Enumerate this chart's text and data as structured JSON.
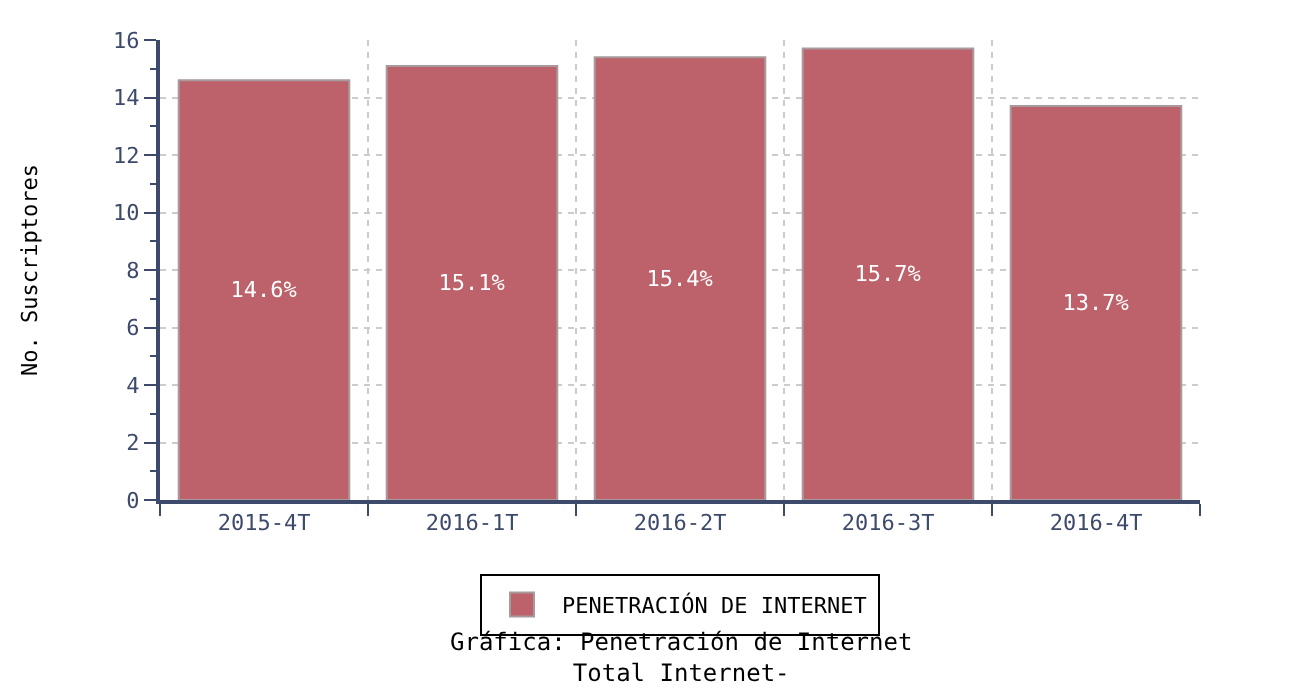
{
  "chart_data": {
    "type": "bar",
    "title": "Gráfica: Penetración de Internet",
    "subtitle": "Total Internet-",
    "ylabel": "No. Suscriptores",
    "categories": [
      "2015-4T",
      "2016-1T",
      "2016-2T",
      "2016-3T",
      "2016-4T"
    ],
    "series": [
      {
        "name": "PENETRACIÓN DE INTERNET",
        "color": "#bd616a",
        "values": [
          14.6,
          15.1,
          15.4,
          15.7,
          13.7
        ],
        "value_labels": [
          "14.6%",
          "15.1%",
          "15.4%",
          "15.7%",
          "13.7%"
        ]
      }
    ],
    "ylim": [
      0,
      16
    ],
    "yticks": [
      0,
      2,
      4,
      6,
      8,
      10,
      12,
      14,
      16
    ],
    "grid": true,
    "legend": "bottom"
  }
}
